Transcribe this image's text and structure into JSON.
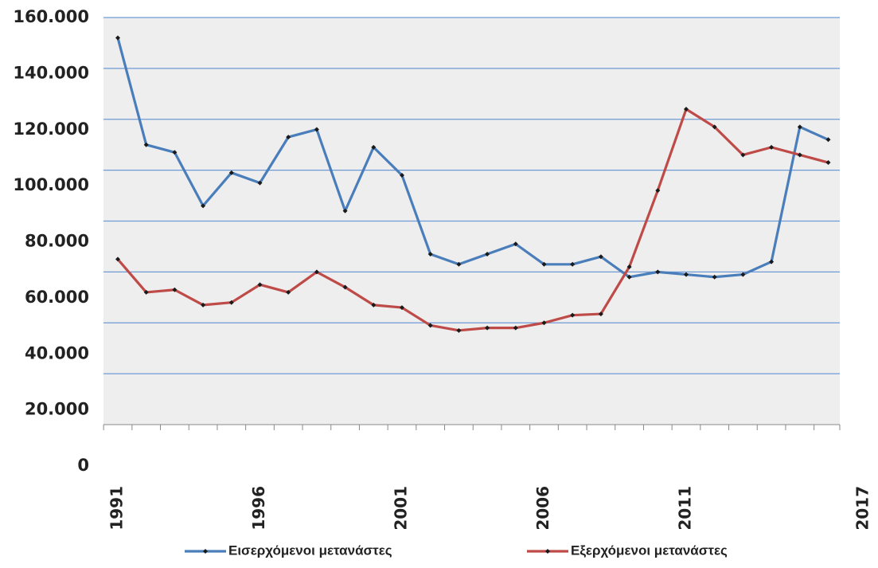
{
  "chart_data": {
    "type": "line",
    "categories": [
      "1991",
      null,
      null,
      null,
      null,
      "1996",
      null,
      null,
      null,
      null,
      "2001",
      null,
      null,
      null,
      null,
      "2006",
      null,
      null,
      null,
      null,
      "2011",
      null,
      null,
      null,
      null,
      null,
      "2017"
    ],
    "series": [
      {
        "name": "Εισερχόμενοι μετανάστες",
        "color": "#4a7ebb",
        "values": [
          152000,
          110000,
          107000,
          86000,
          99000,
          95000,
          113000,
          116000,
          84000,
          109000,
          98000,
          67000,
          63000,
          67000,
          71000,
          63000,
          63000,
          66000,
          58000,
          60000,
          59000,
          58000,
          59000,
          64000,
          117000,
          112000,
          null
        ]
      },
      {
        "name": "Εξερχόμενοι μετανάστες",
        "color": "#be4b48",
        "values": [
          65000,
          52000,
          53000,
          47000,
          48000,
          55000,
          52000,
          60000,
          54000,
          47000,
          46000,
          39000,
          37000,
          38000,
          38000,
          40000,
          43000,
          43500,
          62000,
          92000,
          124000,
          117000,
          106000,
          109000,
          106000,
          103000,
          null
        ]
      }
    ],
    "ylim": [
      0,
      160000
    ],
    "yticks": [
      {
        "value": 0,
        "label": "0"
      },
      {
        "value": 20000,
        "label": "20.000"
      },
      {
        "value": 40000,
        "label": "40.000"
      },
      {
        "value": 60000,
        "label": "60.000"
      },
      {
        "value": 80000,
        "label": "80.000"
      },
      {
        "value": 100000,
        "label": "100.000"
      },
      {
        "value": 120000,
        "label": "120.000"
      },
      {
        "value": 140000,
        "label": "140.000"
      },
      {
        "value": 160000,
        "label": "160.000"
      }
    ],
    "grid": true
  }
}
